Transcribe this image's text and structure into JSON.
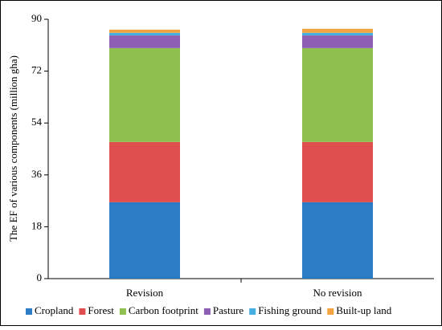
{
  "chart_data": {
    "type": "stacked_bar",
    "y_label": "The EF of various components (million gha)",
    "categories": [
      "Revision",
      "No revision"
    ],
    "series": [
      {
        "name": "Cropland",
        "color": "#2a7dc4",
        "values": [
          26.5,
          26.5
        ]
      },
      {
        "name": "Forest",
        "color": "#e04f4f",
        "values": [
          20.9,
          20.9
        ]
      },
      {
        "name": "Carbon footprint",
        "color": "#8fc04f",
        "values": [
          32.6,
          32.6
        ]
      },
      {
        "name": "Pasture",
        "color": "#8c5fb2",
        "values": [
          4.4,
          4.4
        ]
      },
      {
        "name": "Fishing ground",
        "color": "#46aee0",
        "values": [
          0.9,
          0.9
        ]
      },
      {
        "name": "Built-up land",
        "color": "#f2a441",
        "values": [
          1.1,
          1.4
        ]
      }
    ],
    "ylim": [
      0,
      90
    ],
    "yticks": [
      0,
      18,
      36,
      54,
      72,
      90
    ],
    "legend": "bottom"
  }
}
